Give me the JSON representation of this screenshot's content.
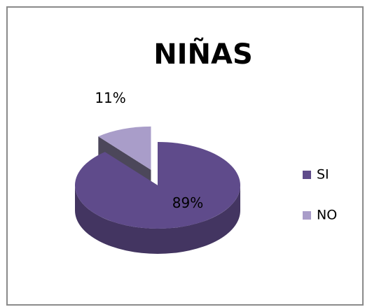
{
  "chart_data": {
    "type": "pie",
    "title": "NIÑAS",
    "categories": [
      "SI",
      "NO"
    ],
    "values": [
      89,
      11
    ],
    "value_labels": [
      "89%",
      "11%"
    ],
    "colors": [
      "#5f4b8b",
      "#a99dc9"
    ],
    "legend": "right"
  }
}
